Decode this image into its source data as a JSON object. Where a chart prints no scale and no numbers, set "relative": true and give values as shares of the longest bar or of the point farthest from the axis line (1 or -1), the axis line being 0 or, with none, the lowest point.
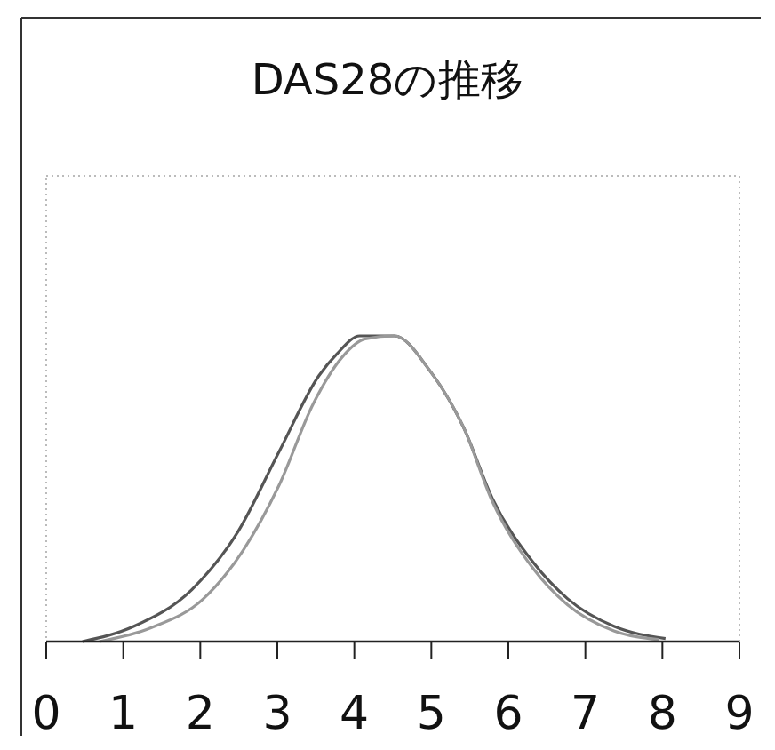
{
  "chart_data": {
    "type": "line",
    "title": "DAS28の推移",
    "relative": true,
    "xlim": [
      0,
      9
    ],
    "xticks": [
      0,
      1,
      2,
      3,
      4,
      5,
      6,
      7,
      8,
      9
    ],
    "grid": false,
    "line_style": "solid",
    "series": [
      {
        "color": "#555555",
        "x": [
          0.47,
          1.14,
          1.89,
          2.49,
          3.02,
          3.54,
          3.77,
          4.07,
          4.52,
          4.97,
          5.42,
          5.79,
          6.32,
          6.77,
          7.37,
          8.04
        ],
        "values": [
          0,
          0.05,
          0.17,
          0.36,
          0.62,
          0.87,
          0.94,
          1,
          1,
          0.89,
          0.7,
          0.47,
          0.26,
          0.14,
          0.05,
          0.01
        ]
      },
      {
        "color": "#999999",
        "x": [
          0.69,
          1.36,
          2.04,
          2.56,
          3.02,
          3.47,
          3.84,
          4.14,
          4.52,
          4.97,
          5.42,
          5.79,
          6.32,
          6.77,
          7.37,
          7.96
        ],
        "values": [
          0,
          0.045,
          0.14,
          0.3,
          0.51,
          0.78,
          0.93,
          0.99,
          1,
          0.89,
          0.7,
          0.46,
          0.24,
          0.12,
          0.035,
          0.006
        ]
      }
    ]
  }
}
